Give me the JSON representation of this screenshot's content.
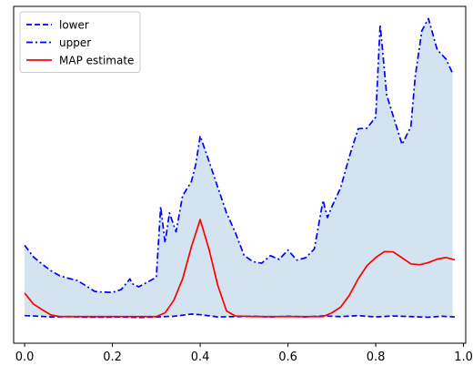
{
  "chart_data": {
    "type": "line",
    "title": "",
    "xlabel": "",
    "ylabel": "",
    "xlim": [
      -0.025,
      1.005
    ],
    "ylim": [
      0,
      1
    ],
    "xticks": [
      0.0,
      0.2,
      0.4,
      0.6,
      0.8,
      1.0
    ],
    "xtick_labels": [
      "0.0",
      "0.2",
      "0.4",
      "0.6",
      "0.8",
      "1.0"
    ],
    "yticks": [],
    "legend": {
      "placement": "top-left"
    },
    "fill": {
      "between": [
        "lower",
        "upper"
      ],
      "color": "#d3e3f0"
    },
    "series": [
      {
        "name": "lower",
        "color": "#0000ff",
        "style": "dashed",
        "x": [
          0.0,
          0.02,
          0.06,
          0.1,
          0.14,
          0.18,
          0.22,
          0.26,
          0.3,
          0.34,
          0.38,
          0.4,
          0.44,
          0.48,
          0.52,
          0.56,
          0.6,
          0.64,
          0.68,
          0.72,
          0.76,
          0.8,
          0.84,
          0.88,
          0.92,
          0.95,
          0.98
        ],
        "values": [
          0.053,
          0.052,
          0.049,
          0.05,
          0.048,
          0.048,
          0.049,
          0.047,
          0.049,
          0.051,
          0.058,
          0.056,
          0.049,
          0.05,
          0.051,
          0.049,
          0.051,
          0.049,
          0.052,
          0.05,
          0.053,
          0.049,
          0.052,
          0.05,
          0.048,
          0.051,
          0.049
        ]
      },
      {
        "name": "upper",
        "color": "#0000ff",
        "style": "dashdot",
        "x": [
          0.0,
          0.02,
          0.04,
          0.06,
          0.08,
          0.1,
          0.12,
          0.14,
          0.16,
          0.18,
          0.2,
          0.22,
          0.24,
          0.245,
          0.26,
          0.28,
          0.3,
          0.31,
          0.32,
          0.33,
          0.345,
          0.36,
          0.38,
          0.39,
          0.4,
          0.42,
          0.44,
          0.46,
          0.48,
          0.5,
          0.52,
          0.54,
          0.56,
          0.58,
          0.6,
          0.62,
          0.64,
          0.66,
          0.68,
          0.69,
          0.7,
          0.72,
          0.74,
          0.76,
          0.78,
          0.8,
          0.81,
          0.825,
          0.845,
          0.86,
          0.88,
          0.89,
          0.905,
          0.92,
          0.94,
          0.96,
          0.975
        ],
        "values": [
          0.277,
          0.24,
          0.217,
          0.196,
          0.18,
          0.172,
          0.165,
          0.148,
          0.13,
          0.128,
          0.127,
          0.136,
          0.17,
          0.155,
          0.145,
          0.16,
          0.175,
          0.4,
          0.285,
          0.38,
          0.32,
          0.435,
          0.48,
          0.535,
          0.625,
          0.545,
          0.462,
          0.38,
          0.318,
          0.245,
          0.225,
          0.22,
          0.244,
          0.232,
          0.262,
          0.23,
          0.237,
          0.265,
          0.42,
          0.365,
          0.4,
          0.46,
          0.56,
          0.648,
          0.65,
          0.685,
          0.98,
          0.755,
          0.665,
          0.598,
          0.655,
          0.815,
          0.96,
          0.999,
          0.9,
          0.87,
          0.825
        ]
      },
      {
        "name": "MAP estimate",
        "color": "#ff0000",
        "style": "solid",
        "x": [
          0.0,
          0.02,
          0.04,
          0.06,
          0.08,
          0.1,
          0.14,
          0.18,
          0.22,
          0.26,
          0.3,
          0.32,
          0.34,
          0.36,
          0.38,
          0.4,
          0.42,
          0.44,
          0.46,
          0.48,
          0.52,
          0.56,
          0.6,
          0.64,
          0.66,
          0.68,
          0.7,
          0.72,
          0.74,
          0.76,
          0.78,
          0.8,
          0.82,
          0.84,
          0.86,
          0.88,
          0.9,
          0.92,
          0.94,
          0.96,
          0.98
        ],
        "values": [
          0.125,
          0.09,
          0.072,
          0.055,
          0.05,
          0.05,
          0.05,
          0.05,
          0.05,
          0.05,
          0.05,
          0.062,
          0.102,
          0.17,
          0.272,
          0.359,
          0.265,
          0.15,
          0.068,
          0.052,
          0.05,
          0.05,
          0.05,
          0.05,
          0.05,
          0.05,
          0.062,
          0.08,
          0.118,
          0.17,
          0.212,
          0.238,
          0.257,
          0.256,
          0.237,
          0.218,
          0.215,
          0.222,
          0.233,
          0.238,
          0.231
        ]
      }
    ]
  }
}
